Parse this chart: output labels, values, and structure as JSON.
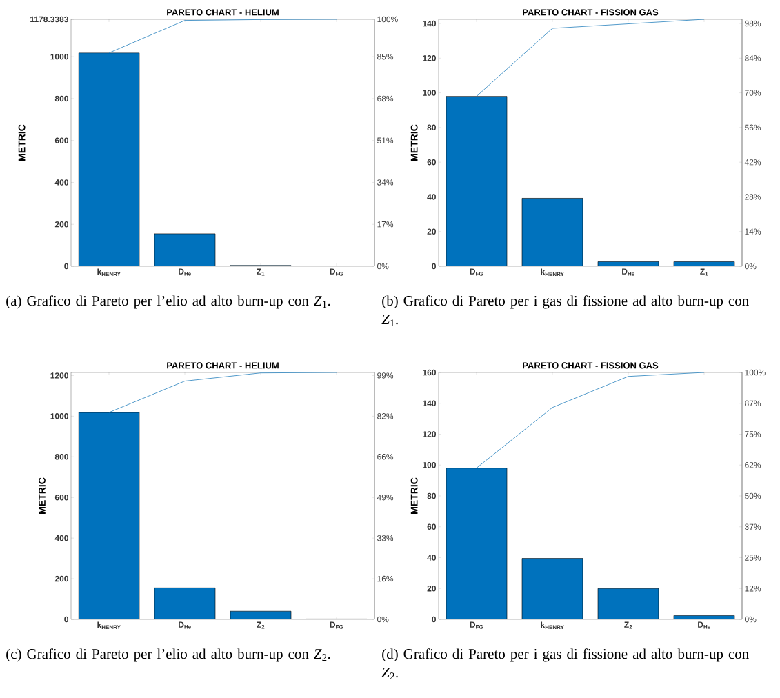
{
  "chart_data": [
    {
      "type": "bar",
      "title": "PARETO CHART - HELIUM",
      "ylabel": "METRIC",
      "categories": [
        "k$_{HENRY}$",
        "D$_{He}$",
        "Z$_{1}$",
        "D$_{FG}$"
      ],
      "series": [
        {
          "color": "#0072bd",
          "values": [
            1018,
            155,
            4,
            1.3
          ]
        },
        {
          "type": "line",
          "axis": "y2",
          "color": "#3e8ec4",
          "values": [
            86.39,
            99.55,
            99.89,
            100
          ]
        }
      ],
      "ylim": [
        0,
        1178.3383
      ],
      "yticks": [
        0,
        200,
        400,
        600,
        800,
        1000,
        1178.3383
      ],
      "y2lim": [
        0,
        100
      ],
      "y2ticks": [
        {
          "value": 0,
          "label": "0%"
        },
        {
          "value": 16.97,
          "label": "17%"
        },
        {
          "value": 33.95,
          "label": "34%"
        },
        {
          "value": 50.92,
          "label": "51%"
        },
        {
          "value": 67.89,
          "label": "68%"
        },
        {
          "value": 84.87,
          "label": "85%"
        },
        {
          "value": 100,
          "label": "100%"
        }
      ],
      "annotations": [
        "(a) Grafico di Pareto per l’elio ad alto burn-up con *Z*$_{1}$."
      ]
    },
    {
      "type": "bar",
      "title": "PARETO CHART - FISSION GAS",
      "ylabel": "METRIC",
      "categories": [
        "D$_{FG}$",
        "k$_{HENRY}$",
        "D$_{He}$",
        "Z$_{1}$"
      ],
      "series": [
        {
          "color": "#0072bd",
          "values": [
            98,
            39.2,
            2.6,
            2.6
          ]
        },
        {
          "type": "line",
          "axis": "y2",
          "color": "#3e8ec4",
          "values": [
            68.82,
            96.35,
            98.17,
            100
          ]
        }
      ],
      "ylim": [
        0,
        142.4
      ],
      "yticks": [
        0,
        20,
        40,
        60,
        80,
        100,
        120,
        140
      ],
      "y2lim": [
        0,
        100
      ],
      "y2ticks": [
        {
          "value": 0,
          "label": "0%"
        },
        {
          "value": 14.04,
          "label": "14%"
        },
        {
          "value": 28.09,
          "label": "28%"
        },
        {
          "value": 42.13,
          "label": "42%"
        },
        {
          "value": 56.18,
          "label": "56%"
        },
        {
          "value": 70.22,
          "label": "70%"
        },
        {
          "value": 84.27,
          "label": "84%"
        },
        {
          "value": 98.31,
          "label": "98%"
        }
      ],
      "annotations": [
        "(b) Grafico di Pareto per i gas di fissione ad alto burn-up con *Z*$_{1}$."
      ]
    },
    {
      "type": "bar",
      "title": "PARETO CHART - HELIUM",
      "ylabel": "METRIC",
      "categories": [
        "k$_{HENRY}$",
        "D$_{He}$",
        "Z$_{2}$",
        "D$_{FG}$"
      ],
      "series": [
        {
          "color": "#0072bd",
          "values": [
            1018,
            155,
            40,
            2
          ]
        },
        {
          "type": "line",
          "axis": "y2",
          "color": "#3e8ec4",
          "values": [
            83.8,
            96.5,
            99.8,
            100
          ]
        }
      ],
      "ylim": [
        0,
        1215
      ],
      "yticks": [
        0,
        200,
        400,
        600,
        800,
        1000,
        1200
      ],
      "y2lim": [
        0,
        100
      ],
      "y2ticks": [
        {
          "value": 0,
          "label": "0%"
        },
        {
          "value": 16.46,
          "label": "16%"
        },
        {
          "value": 32.92,
          "label": "33%"
        },
        {
          "value": 49.38,
          "label": "49%"
        },
        {
          "value": 65.84,
          "label": "66%"
        },
        {
          "value": 82.3,
          "label": "82%"
        },
        {
          "value": 98.77,
          "label": "99%"
        }
      ],
      "annotations": [
        "(c) Grafico di Pareto per l’elio ad alto burn-up con *Z*$_{2}$."
      ]
    },
    {
      "type": "bar",
      "title": "PARETO CHART - FISSION GAS",
      "ylabel": "METRIC",
      "categories": [
        "D$_{FG}$",
        "k$_{HENRY}$",
        "Z$_{2}$",
        "D$_{He}$"
      ],
      "series": [
        {
          "color": "#0072bd",
          "values": [
            98,
            39.5,
            20,
            2.5
          ]
        },
        {
          "type": "line",
          "axis": "y2",
          "color": "#3e8ec4",
          "values": [
            61.3,
            85.8,
            98.4,
            100
          ]
        }
      ],
      "ylim": [
        0,
        160
      ],
      "yticks": [
        0,
        20,
        40,
        60,
        80,
        100,
        120,
        140,
        160
      ],
      "y2lim": [
        0,
        100
      ],
      "y2ticks": [
        {
          "value": 0,
          "label": "0%"
        },
        {
          "value": 12.5,
          "label": "12%"
        },
        {
          "value": 25,
          "label": "25%"
        },
        {
          "value": 37.5,
          "label": "37%"
        },
        {
          "value": 50,
          "label": "50%"
        },
        {
          "value": 62.5,
          "label": "62%"
        },
        {
          "value": 75,
          "label": "75%"
        },
        {
          "value": 87.5,
          "label": "87%"
        },
        {
          "value": 100,
          "label": "100%"
        }
      ],
      "annotations": [
        "(d) Grafico di Pareto per i gas di fissione ad alto burn-up con *Z*$_{2}$."
      ]
    }
  ]
}
